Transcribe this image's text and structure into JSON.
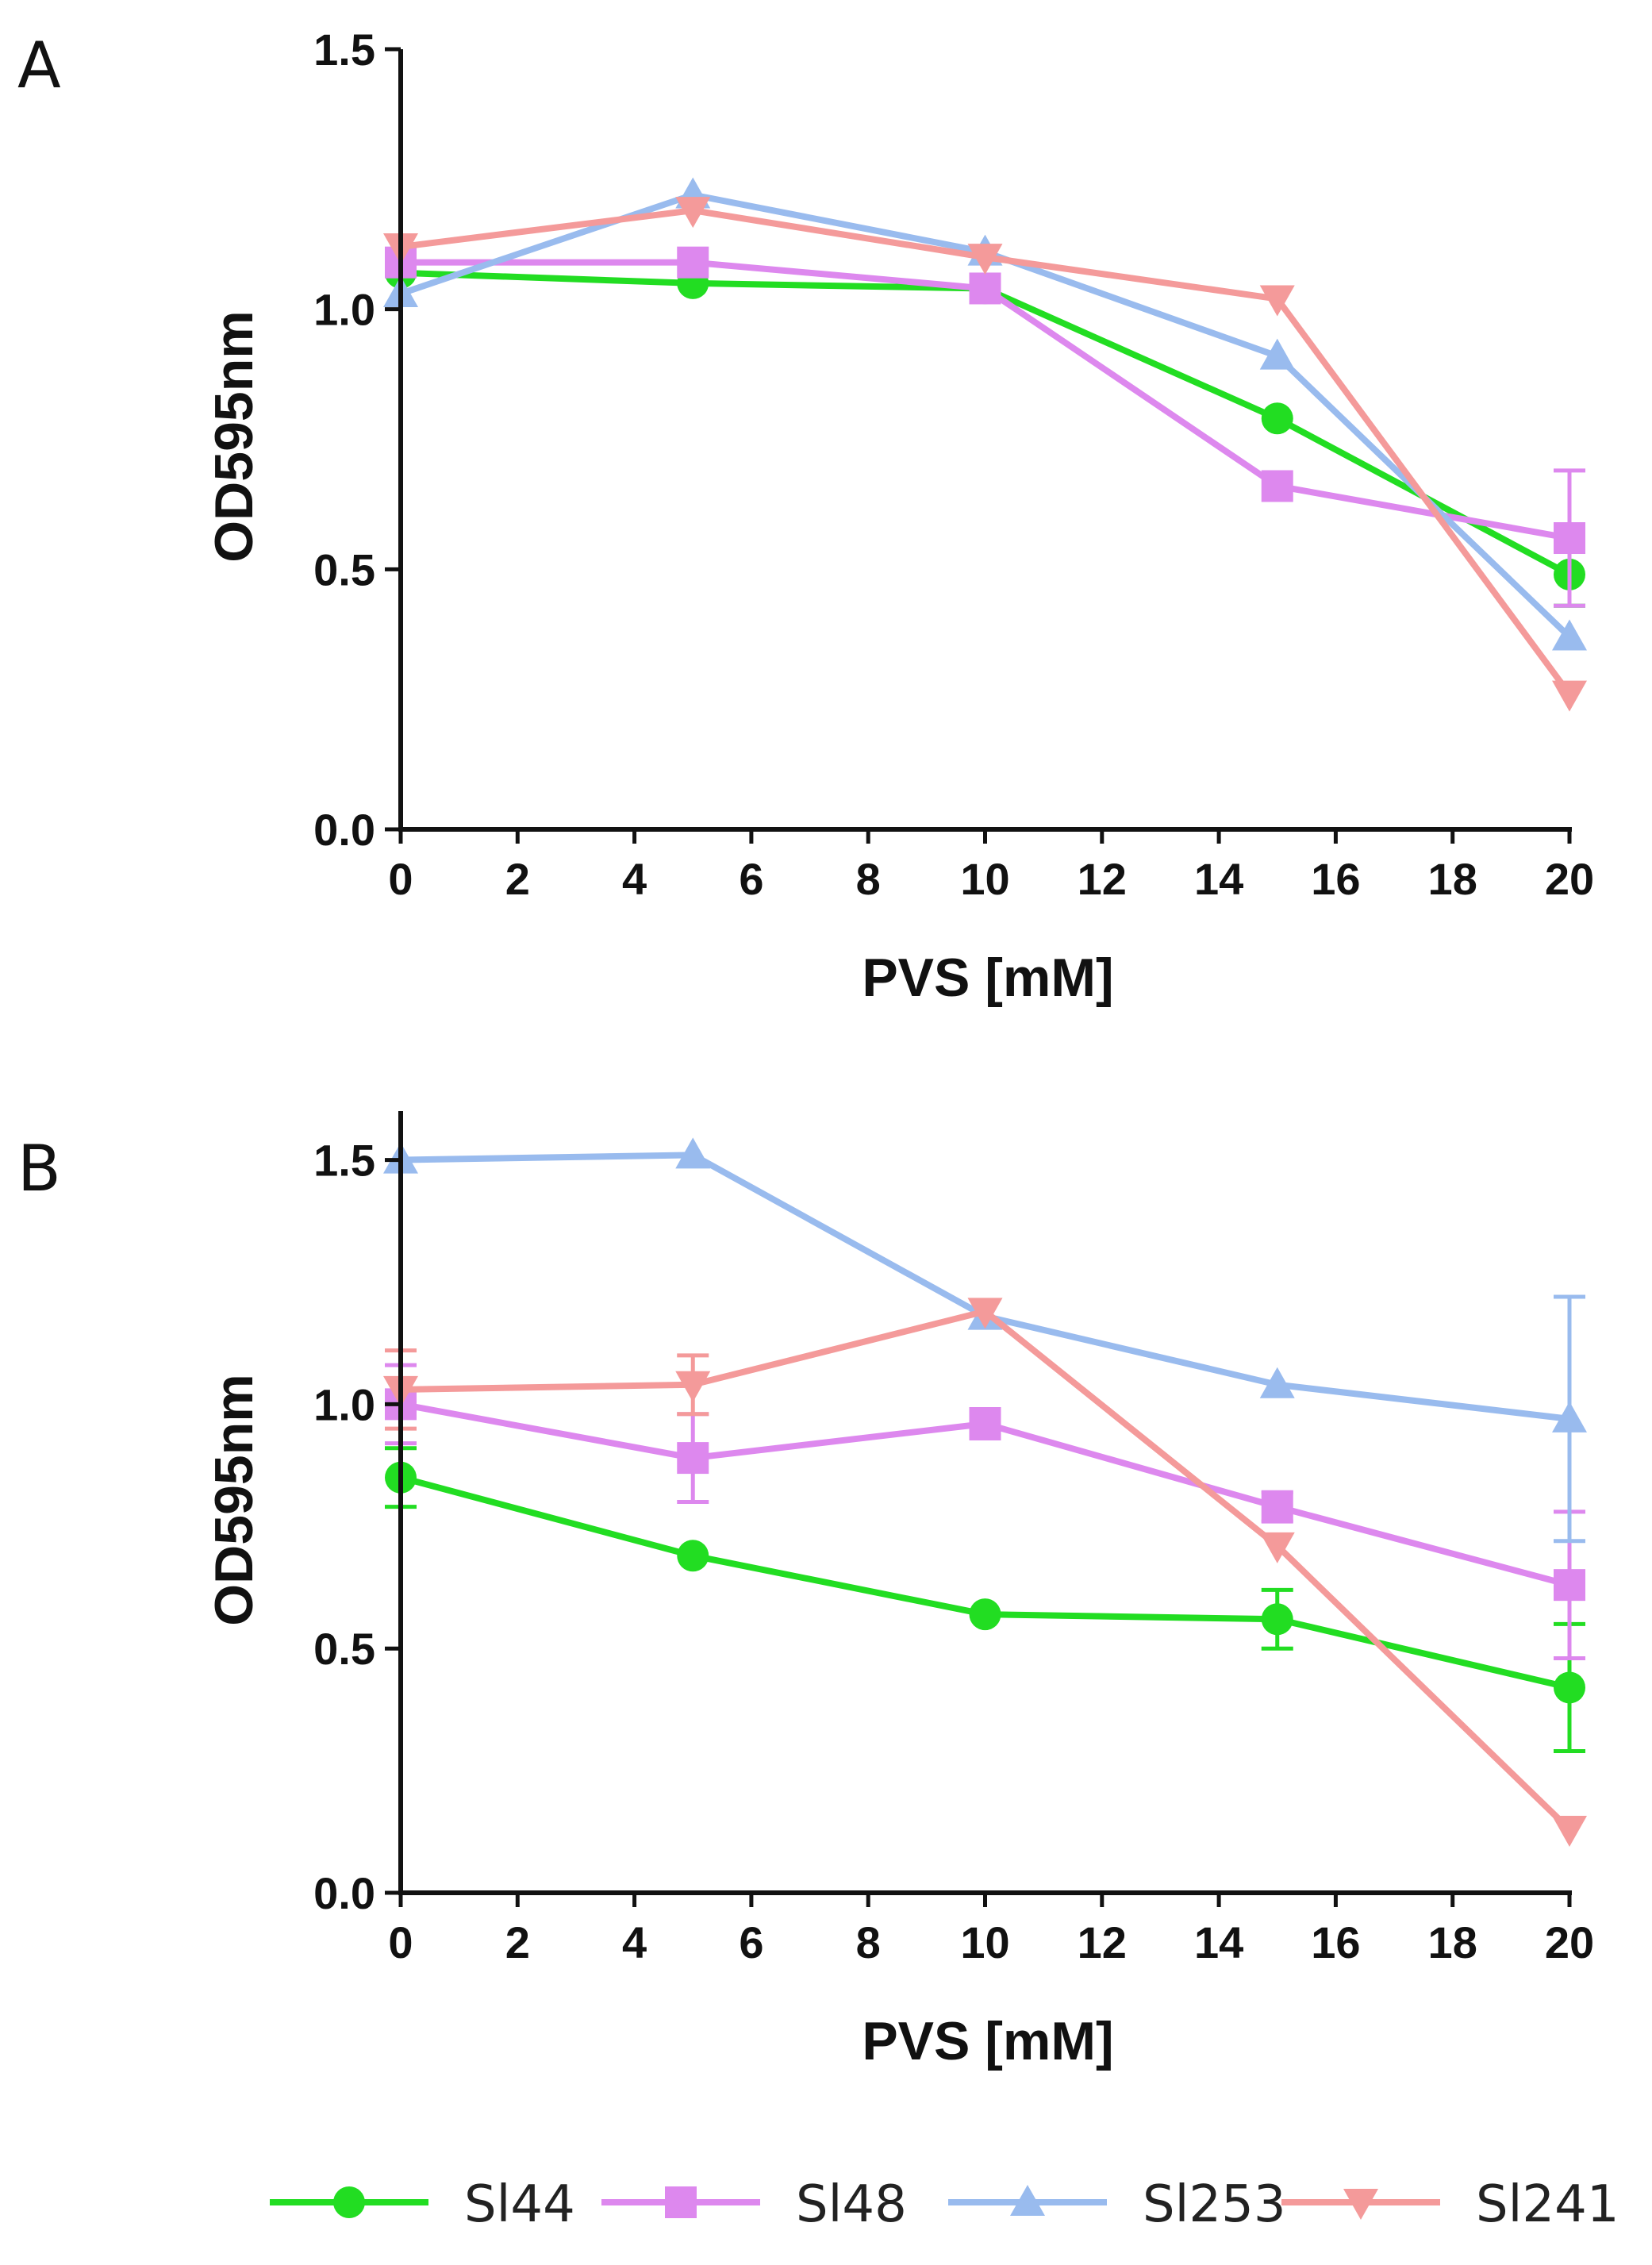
{
  "legend": [
    {
      "key": "Sl44",
      "label": "Sl44",
      "color": "#22dd22",
      "marker": "circle"
    },
    {
      "key": "Sl48",
      "label": "Sl48",
      "color": "#dd88ee",
      "marker": "square"
    },
    {
      "key": "Sl253",
      "label": "Sl253",
      "color": "#99bbee",
      "marker": "triangle-up"
    },
    {
      "key": "Sl241",
      "label": "Sl241",
      "color": "#f49a9a",
      "marker": "triangle-down"
    }
  ],
  "chart_data": [
    {
      "panel": "A",
      "type": "line",
      "xlabel": "PVS [mM]",
      "ylabel": "OD595nm",
      "xlim": [
        0,
        20
      ],
      "ylim": [
        0,
        1.5
      ],
      "xticks": [
        "0",
        "2",
        "4",
        "6",
        "8",
        "10",
        "12",
        "14",
        "16",
        "18",
        "20"
      ],
      "yticks": [
        "0.0",
        "0.5",
        "1.0",
        "1.5"
      ],
      "x": [
        0,
        5,
        10,
        15,
        20
      ],
      "series": [
        {
          "name": "Sl44",
          "values": [
            1.07,
            1.05,
            1.04,
            0.79,
            0.49
          ],
          "err": [
            0,
            0,
            0,
            0,
            0.06
          ]
        },
        {
          "name": "Sl48",
          "values": [
            1.09,
            1.09,
            1.04,
            0.66,
            0.56
          ],
          "err": [
            0,
            0,
            0,
            0,
            0.13
          ]
        },
        {
          "name": "Sl253",
          "values": [
            1.03,
            1.22,
            1.11,
            0.91,
            0.37
          ],
          "err": [
            0,
            0,
            0,
            0,
            0
          ]
        },
        {
          "name": "Sl241",
          "values": [
            1.12,
            1.19,
            1.1,
            1.02,
            0.26
          ],
          "err": [
            0,
            0,
            0,
            0,
            0
          ]
        }
      ]
    },
    {
      "panel": "B",
      "type": "line",
      "xlabel": "PVS [mM]",
      "ylabel": "OD595nm",
      "xlim": [
        0,
        20
      ],
      "ylim": [
        0,
        1.6
      ],
      "xticks": [
        "0",
        "2",
        "4",
        "6",
        "8",
        "10",
        "12",
        "14",
        "16",
        "18",
        "20"
      ],
      "yticks": [
        "0.0",
        "0.5",
        "1.0",
        "1.5"
      ],
      "x": [
        0,
        5,
        10,
        15,
        20
      ],
      "series": [
        {
          "name": "Sl44",
          "values": [
            0.85,
            0.69,
            0.57,
            0.56,
            0.42
          ],
          "err": [
            0.06,
            0,
            0,
            0.06,
            0.13
          ]
        },
        {
          "name": "Sl48",
          "values": [
            1.0,
            0.89,
            0.96,
            0.79,
            0.63
          ],
          "err": [
            0.08,
            0.09,
            0.03,
            0.03,
            0.15
          ]
        },
        {
          "name": "Sl253",
          "values": [
            1.5,
            1.51,
            1.18,
            1.04,
            0.97
          ],
          "err": [
            0,
            0,
            0,
            0,
            0.25
          ]
        },
        {
          "name": "Sl241",
          "values": [
            1.03,
            1.04,
            1.19,
            0.71,
            0.13
          ],
          "err": [
            0.08,
            0.06,
            0,
            0,
            0
          ]
        }
      ]
    }
  ]
}
